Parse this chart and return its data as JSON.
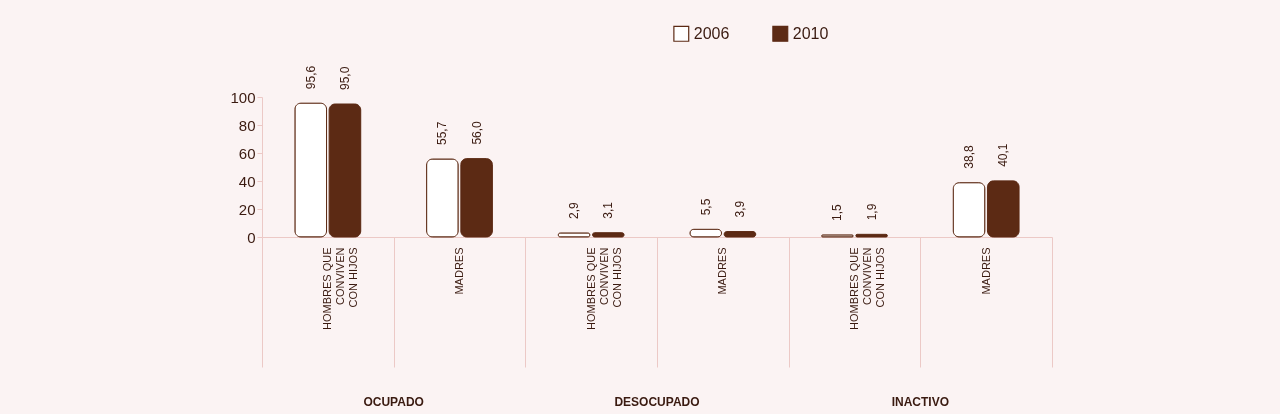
{
  "chart_data": {
    "type": "bar",
    "categories": [
      "HOMBRES QUE\nCONVIVEN\nCON HIJOS",
      "MADRES",
      "HOMBRES QUE\nCONVIVEN\nCON HIJOS",
      "MADRES",
      "HOMBRES QUE\nCONVIVEN\nCON HIJOS",
      "MADRES"
    ],
    "series": [
      {
        "name": "2006",
        "color": "#ffffff",
        "values": [
          95.6,
          55.7,
          2.9,
          5.5,
          1.5,
          38.8
        ],
        "value_labels": [
          "95,6",
          "55,7",
          "2,9",
          "5,5",
          "1,5",
          "38,8"
        ]
      },
      {
        "name": "2010",
        "color": "#5c2a14",
        "values": [
          95.0,
          56.0,
          3.1,
          3.9,
          1.9,
          40.1
        ],
        "value_labels": [
          "95,0",
          "56,0",
          "3,1",
          "3,9",
          "1,9",
          "40,1"
        ]
      }
    ],
    "annotations": [
      "OCUPADO",
      "DESOCUPADO",
      "INACTIVO"
    ],
    "ylim": [
      0,
      100
    ],
    "yticks": [
      0,
      20,
      40,
      60,
      80,
      100
    ],
    "grid": false,
    "legend": "top"
  }
}
